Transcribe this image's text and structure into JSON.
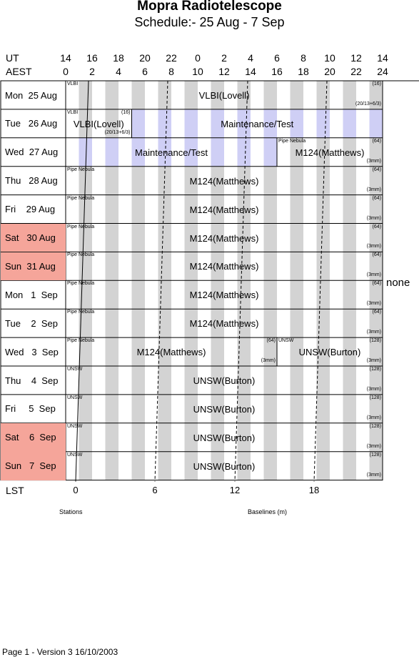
{
  "title": "Mopra Radiotelescope",
  "subtitle": "Schedule:- 25 Aug - 7 Sep",
  "ut_label": "UT",
  "aest_label": "AEST",
  "lst_label": "LST",
  "ut_ticks": [
    "14",
    "16",
    "18",
    "20",
    "22",
    "0",
    "2",
    "4",
    "6",
    "8",
    "10",
    "12",
    "14"
  ],
  "aest_ticks": [
    "0",
    "2",
    "4",
    "6",
    "8",
    "10",
    "12",
    "14",
    "16",
    "18",
    "20",
    "22",
    "24"
  ],
  "lst_ticks": [
    "0",
    "6",
    "12",
    "18"
  ],
  "days": [
    {
      "label": "Mon  25 Aug",
      "weekend": false
    },
    {
      "label": "Tue   26 Aug",
      "weekend": false
    },
    {
      "label": "Wed  27 Aug",
      "weekend": false
    },
    {
      "label": "Thu   28 Aug",
      "weekend": false
    },
    {
      "label": "Fri    29 Aug",
      "weekend": false
    },
    {
      "label": "Sat   30 Aug",
      "weekend": true
    },
    {
      "label": "Sun  31 Aug",
      "weekend": true
    },
    {
      "label": "Mon   1  Sep",
      "weekend": false
    },
    {
      "label": "Tue    2  Sep",
      "weekend": false
    },
    {
      "label": "Wed   3  Sep",
      "weekend": false
    },
    {
      "label": "Thu    4  Sep",
      "weekend": false
    },
    {
      "label": "Fri     5  Sep",
      "weekend": false
    },
    {
      "label": "Sat    6  Sep",
      "weekend": true
    },
    {
      "label": "Sun   7  Sep",
      "weekend": true
    }
  ],
  "blocks": [
    {
      "row": 0,
      "start": 0,
      "end": 24,
      "label": "VLBI(Lovell)",
      "tl": "VLBI",
      "tr": "(16)",
      "br": "(20/13+6/3)",
      "maint": false
    },
    {
      "row": 1,
      "start": 0,
      "end": 5,
      "label": "VLBI(Lovell)",
      "tl": "VLBI",
      "tr": "(16)",
      "br": "(20/13+6/3)",
      "maint": false
    },
    {
      "row": 1,
      "start": 5,
      "end": 24,
      "label": "Maintenance/Test",
      "tl": "",
      "tr": "",
      "br": "",
      "maint": true
    },
    {
      "row": 2,
      "start": 0,
      "end": 16,
      "label": "Maintenance/Test",
      "tl": "",
      "tr": "",
      "br": "",
      "maint": true
    },
    {
      "row": 2,
      "start": 16,
      "end": 24,
      "label": "M124(Matthews)",
      "tl": "Pipe Nebula",
      "tr": "(64)",
      "br": "(3mm)",
      "maint": false
    },
    {
      "row": 3,
      "start": 0,
      "end": 24,
      "label": "M124(Matthews)",
      "tl": "Pipe Nebula",
      "tr": "(64)",
      "br": "(3mm)",
      "maint": false
    },
    {
      "row": 4,
      "start": 0,
      "end": 24,
      "label": "M124(Matthews)",
      "tl": "Pipe Nebula",
      "tr": "(64)",
      "br": "(3mm)",
      "maint": false
    },
    {
      "row": 5,
      "start": 0,
      "end": 24,
      "label": "M124(Matthews)",
      "tl": "Pipe Nebula",
      "tr": "(64)",
      "br": "(3mm)",
      "maint": false
    },
    {
      "row": 6,
      "start": 0,
      "end": 24,
      "label": "M124(Matthews)",
      "tl": "Pipe Nebula",
      "tr": "(64)",
      "br": "(3mm)",
      "maint": false
    },
    {
      "row": 7,
      "start": 0,
      "end": 24,
      "label": "M124(Matthews)",
      "tl": "Pipe Nebula",
      "tr": "(64)",
      "br": "(3mm)",
      "maint": false
    },
    {
      "row": 8,
      "start": 0,
      "end": 24,
      "label": "M124(Matthews)",
      "tl": "Pipe Nebula",
      "tr": "(64)",
      "br": "(3mm)",
      "maint": false
    },
    {
      "row": 9,
      "start": 0,
      "end": 16,
      "label": "M124(Matthews)",
      "tl": "Pipe Nebula",
      "tr": "(64)",
      "br": "(3mm)",
      "maint": false
    },
    {
      "row": 9,
      "start": 16,
      "end": 24,
      "label": "UNSW(Burton)",
      "tl": "UNSW",
      "tr": "(128)",
      "br": "(3mm)",
      "maint": false
    },
    {
      "row": 10,
      "start": 0,
      "end": 24,
      "label": "UNSW(Burton)",
      "tl": "UNSW",
      "tr": "(128)",
      "br": "(3mm)",
      "maint": false
    },
    {
      "row": 11,
      "start": 0,
      "end": 24,
      "label": "UNSW(Burton)",
      "tl": "UNSW",
      "tr": "(128)",
      "br": "(3mm)",
      "maint": false
    },
    {
      "row": 12,
      "start": 0,
      "end": 24,
      "label": "UNSW(Burton)",
      "tl": "UNSW",
      "tr": "(128)",
      "br": "(3mm)",
      "maint": false
    },
    {
      "row": 13,
      "start": 0,
      "end": 24,
      "label": "UNSW(Burton)",
      "tl": "UNSW",
      "tr": "(128)",
      "br": "(3mm)",
      "maint": false
    }
  ],
  "none_label": "none",
  "stations_label": "Stations",
  "baselines_label": "Baselines (m)",
  "footer": "Page 1 - Version 3  16/10/2003",
  "colors": {
    "stripe": "#d3d3d3",
    "maint_stripe": "#cfcff5",
    "weekend": "#f5a59a"
  }
}
